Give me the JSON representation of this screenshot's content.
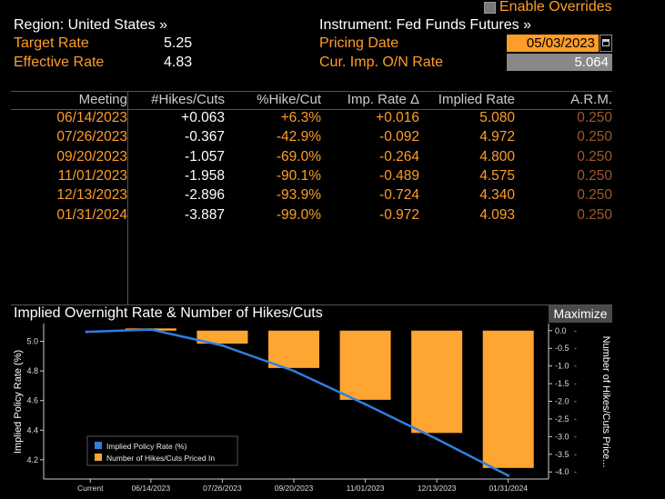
{
  "header": {
    "region": "Region: United States »",
    "instrument": "Instrument: Fed Funds Futures »",
    "enable_overrides": "Enable Overrides",
    "target_rate_label": "Target Rate",
    "target_rate_value": "5.25",
    "effective_rate_label": "Effective Rate",
    "effective_rate_value": "4.83",
    "pricing_date_label": "Pricing Date",
    "pricing_date_value": "05/03/2023",
    "cur_imp_label": "Cur. Imp. O/N Rate",
    "cur_imp_value": "5.064"
  },
  "table": {
    "columns": [
      "Meeting",
      "#Hikes/Cuts",
      "%Hike/Cut",
      "Imp. Rate Δ",
      "Implied Rate",
      "A.R.M."
    ],
    "rows": [
      {
        "meeting": "06/14/2023",
        "hikes": "+0.063",
        "pct": "+6.3%",
        "delta": "+0.016",
        "implied": "5.080",
        "arm": "0.250"
      },
      {
        "meeting": "07/26/2023",
        "hikes": "-0.367",
        "pct": "-42.9%",
        "delta": "-0.092",
        "implied": "4.972",
        "arm": "0.250"
      },
      {
        "meeting": "09/20/2023",
        "hikes": "-1.057",
        "pct": "-69.0%",
        "delta": "-0.264",
        "implied": "4.800",
        "arm": "0.250"
      },
      {
        "meeting": "11/01/2023",
        "hikes": "-1.958",
        "pct": "-90.1%",
        "delta": "-0.489",
        "implied": "4.575",
        "arm": "0.250"
      },
      {
        "meeting": "12/13/2023",
        "hikes": "-2.896",
        "pct": "-93.9%",
        "delta": "-0.724",
        "implied": "4.340",
        "arm": "0.250"
      },
      {
        "meeting": "01/31/2024",
        "hikes": "-3.887",
        "pct": "-99.0%",
        "delta": "-0.972",
        "implied": "4.093",
        "arm": "0.250"
      }
    ]
  },
  "chart_section": {
    "title": "Implied Overnight Rate & Number of Hikes/Cuts",
    "maximize_label": "Maximize"
  },
  "chart_data": {
    "type": "bar",
    "categories": [
      "Current",
      "06/14/2023",
      "07/26/2023",
      "09/20/2023",
      "11/01/2023",
      "12/13/2023",
      "01/31/2024"
    ],
    "series": [
      {
        "name": "Implied Policy Rate (%)",
        "type": "line",
        "axis": "left",
        "values": [
          5.064,
          5.08,
          4.972,
          4.8,
          4.575,
          4.34,
          4.093
        ],
        "color": "#2f7fe0"
      },
      {
        "name": "Number of Hikes/Cuts Priced In",
        "type": "bar",
        "axis": "right",
        "values": [
          0,
          0.063,
          -0.367,
          -1.057,
          -1.958,
          -2.896,
          -3.887
        ],
        "color": "#ffa531"
      }
    ],
    "ylabel_left": "Implied Policy Rate (%)",
    "ylabel_right": "Number of Hikes/Cuts Price...",
    "y_left_ticks": [
      "4.2",
      "4.4",
      "4.6",
      "4.8",
      "5.0"
    ],
    "y_right_ticks": [
      "0.0",
      "-0.5",
      "-1.0",
      "-1.5",
      "-2.0",
      "-2.5",
      "-3.0",
      "-3.5",
      "-4.0"
    ],
    "ylim_left": [
      4.07,
      5.12
    ],
    "ylim_right": [
      -4.2,
      0.2
    ]
  }
}
